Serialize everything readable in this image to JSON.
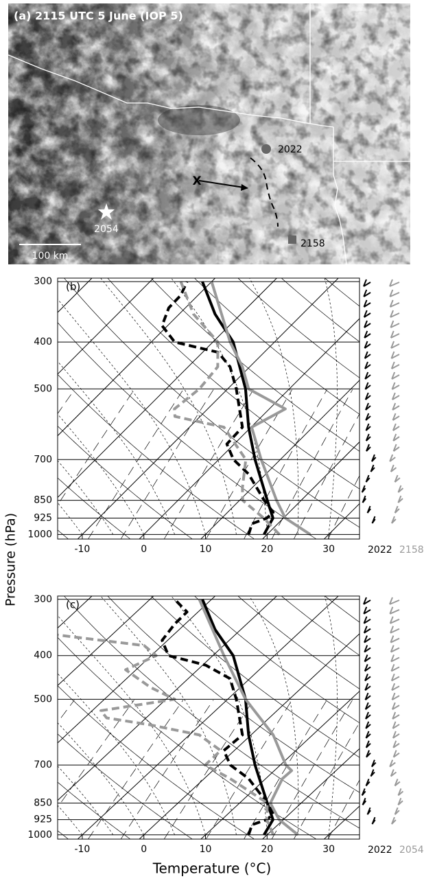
{
  "map": {
    "title": "(a) 2115 UTC 5 June (IOP 5)",
    "markers": [
      {
        "label": "2022"
      },
      {
        "label": "2158"
      },
      {
        "label": "2054"
      }
    ],
    "track_label": "X",
    "scale_label": "100 km"
  },
  "chart_data": [
    {
      "type": "skewt",
      "panel_label": "(b)",
      "y_label": "Pressure (hPa)",
      "log_y": true,
      "grid": true,
      "xlim": [
        -14,
        35
      ],
      "ylim": [
        1022,
        295
      ],
      "xticks": [
        -10,
        0,
        10,
        20,
        30
      ],
      "yticks": [
        300,
        400,
        500,
        700,
        850,
        925,
        1000
      ],
      "legend": [
        {
          "label": "2022",
          "color": "#000000"
        },
        {
          "label": "2158",
          "color": "#999999"
        }
      ],
      "series": [
        {
          "color": "#000000",
          "dashed": false,
          "y": [
            1000,
            925,
            850,
            700,
            600,
            500,
            400,
            350,
            300
          ],
          "x": [
            19.5,
            18.3,
            14.5,
            5.9,
            -0.4,
            -7.1,
            -16.7,
            -24.2,
            -31.5
          ]
        },
        {
          "color": "#000000",
          "dashed": true,
          "y": [
            1000,
            950,
            925,
            900,
            850,
            750,
            700,
            650,
            600,
            500,
            450,
            420,
            400,
            370,
            340,
            320,
            300
          ],
          "x": [
            17,
            15.8,
            17.3,
            17.4,
            14.0,
            7.2,
            2.4,
            -1.2,
            -1.4,
            -8.6,
            -13.2,
            -17.5,
            -26.2,
            -30.9,
            -32.7,
            -32.8,
            -34
          ]
        },
        {
          "color": "#999999",
          "dashed": false,
          "y": [
            1000,
            925,
            850,
            700,
            600,
            550,
            500,
            450,
            400,
            300
          ],
          "x": [
            27,
            20.3,
            16.0,
            6.9,
            0.1,
            2.6,
            -6.6,
            -11.2,
            -17.2,
            -30
          ]
        },
        {
          "color": "#999999",
          "dashed": true,
          "y": [
            1000,
            925,
            850,
            800,
            700,
            600,
            570,
            550,
            500,
            450,
            400,
            350,
            300
          ],
          "x": [
            22,
            16.8,
            10.5,
            8.4,
            4.4,
            -4.4,
            -14.1,
            -15.4,
            -14.6,
            -15.2,
            -19.2,
            -27.7,
            -35
          ]
        }
      ]
    },
    {
      "type": "skewt",
      "panel_label": "(c)",
      "x_label": "Temperature (°C)",
      "log_y": true,
      "grid": true,
      "xlim": [
        -14,
        35
      ],
      "ylim": [
        1022,
        295
      ],
      "xticks": [
        -10,
        0,
        10,
        20,
        30
      ],
      "yticks": [
        300,
        400,
        500,
        700,
        850,
        925,
        1000
      ],
      "legend": [
        {
          "label": "2022",
          "color": "#000000"
        },
        {
          "label": "2054",
          "color": "#999999"
        }
      ],
      "series": [
        {
          "color": "#000000",
          "dashed": false,
          "y": [
            1000,
            925,
            850,
            700,
            600,
            500,
            400,
            350,
            300
          ],
          "x": [
            19.5,
            18.3,
            14.5,
            5.9,
            -0.4,
            -7.1,
            -16.7,
            -24.2,
            -31.5
          ]
        },
        {
          "color": "#000000",
          "dashed": true,
          "y": [
            1000,
            950,
            925,
            900,
            850,
            750,
            700,
            650,
            600,
            500,
            450,
            420,
            400,
            370,
            340,
            320,
            300
          ],
          "x": [
            17,
            15.8,
            17.3,
            17.4,
            14.5,
            7.2,
            1.9,
            -1.7,
            -1.4,
            -8.6,
            -13.2,
            -19.5,
            -27.2,
            -30.9,
            -31.7,
            -31.8,
            -36
          ]
        },
        {
          "color": "#999999",
          "dashed": false,
          "y": [
            1000,
            925,
            850,
            750,
            720,
            700,
            600,
            500,
            400,
            300
          ],
          "x": [
            25,
            19.3,
            15.0,
            12.7,
            12.8,
            10.9,
            3.6,
            -7.1,
            -18.2,
            -32
          ]
        },
        {
          "color": "#999999",
          "dashed": true,
          "y": [
            1000,
            925,
            850,
            750,
            700,
            650,
            600,
            570,
            550,
            530,
            500,
            470,
            430,
            400,
            380,
            360
          ],
          "x": [
            21,
            17.3,
            14.5,
            4.2,
            -2.2,
            -2.2,
            -8.4,
            -18.1,
            -26.4,
            -28.6,
            -18.6,
            -24.7,
            -31.7,
            -29.2,
            -32.9,
            -48.8
          ]
        }
      ]
    }
  ]
}
